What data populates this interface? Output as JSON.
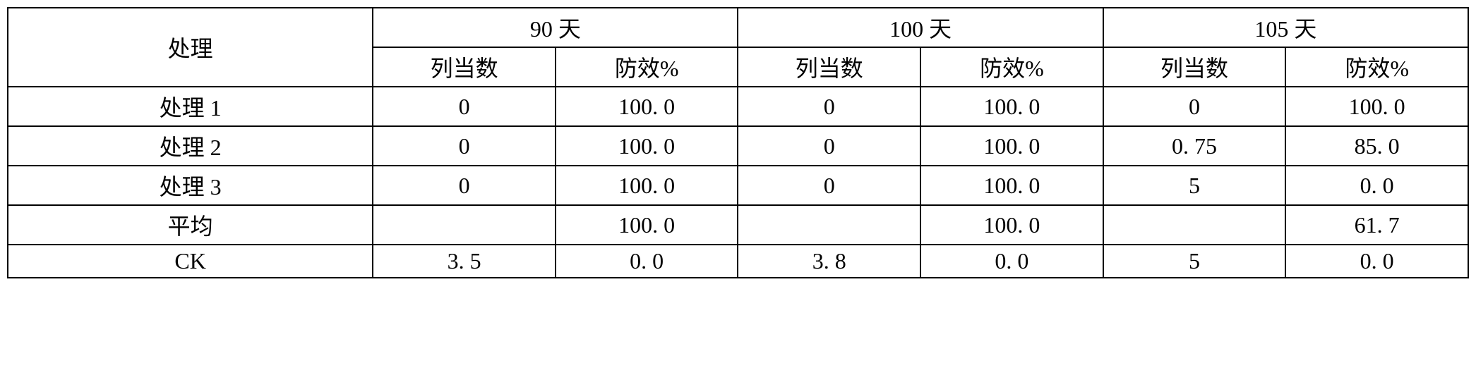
{
  "table": {
    "header_row1": {
      "treatment": "处理",
      "group1": "90 天",
      "group2": "100 天",
      "group3": "105 天"
    },
    "header_row2": {
      "col1": "列当数",
      "col2": "防效%",
      "col3": "列当数",
      "col4": "防效%",
      "col5": "列当数",
      "col6": "防效%"
    },
    "rows": [
      {
        "label": "处理 1",
        "c1": "0",
        "c2": "100. 0",
        "c3": "0",
        "c4": "100. 0",
        "c5": "0",
        "c6": "100. 0"
      },
      {
        "label": "处理 2",
        "c1": "0",
        "c2": "100. 0",
        "c3": "0",
        "c4": "100. 0",
        "c5": "0. 75",
        "c6": "85. 0"
      },
      {
        "label": "处理 3",
        "c1": "0",
        "c2": "100. 0",
        "c3": "0",
        "c4": "100. 0",
        "c5": "5",
        "c6": "0. 0"
      },
      {
        "label": "平均",
        "c1": "",
        "c2": "100. 0",
        "c3": "",
        "c4": "100. 0",
        "c5": "",
        "c6": "61. 7"
      },
      {
        "label": "CK",
        "c1": "3. 5",
        "c2": "0. 0",
        "c3": "3. 8",
        "c4": "0. 0",
        "c5": "5",
        "c6": "0. 0"
      }
    ],
    "styling": {
      "border_color": "#000000",
      "border_width": 2,
      "background_color": "#ffffff",
      "text_color": "#000000",
      "font_size": 32,
      "font_family": "SimSun",
      "text_align": "center"
    }
  }
}
